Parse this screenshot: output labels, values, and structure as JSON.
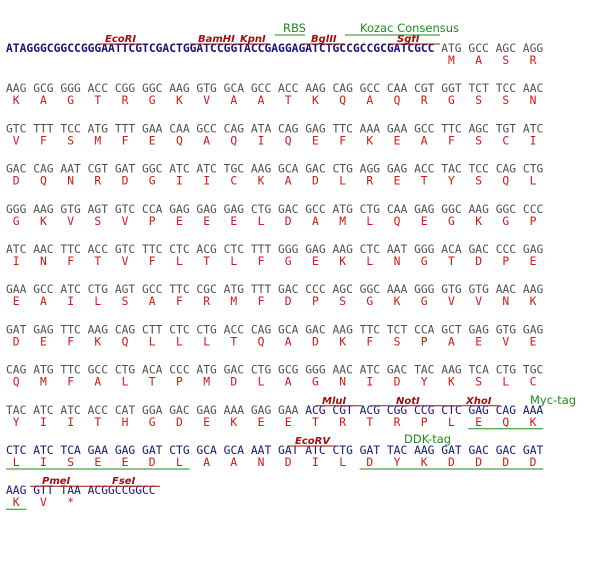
{
  "sequence": {
    "colors": {
      "vector": "#14147a",
      "orf": "#505050",
      "tag": "#14147a",
      "amino_acid": "#d01818",
      "site": "#a01010",
      "element": "#1f8a1f"
    },
    "lines": [
      {
        "segments": [
          {
            "text": "ATAGGGCGGCCGGGAATTCGTCGACTGGATCCGGTACCGAGGAGATCTGCCGCCGCGATCGCC",
            "kind": "vector",
            "bold": true
          },
          {
            "text": "ATG GCC AGC AGG",
            "kind": "orf"
          }
        ],
        "aa": [
          "M",
          "A",
          "S",
          "R"
        ]
      },
      {
        "segments": [
          {
            "text": "AAG GCG GGG ACC CGG GGC AAG GTG GCA GCC ACC AAG CAG GCC CAA CGT GGT TCT TCC AAC",
            "kind": "orf"
          }
        ],
        "aa": [
          "K",
          "A",
          "G",
          "T",
          "R",
          "G",
          "K",
          "V",
          "A",
          "A",
          "T",
          "K",
          "Q",
          "A",
          "Q",
          "R",
          "G",
          "S",
          "S",
          "N"
        ]
      },
      {
        "segments": [
          {
            "text": "GTC TTT TCC ATG TTT GAA CAA GCC CAG ATA CAG GAG TTC AAA GAA GCC TTC AGC TGT ATC",
            "kind": "orf"
          }
        ],
        "aa": [
          "V",
          "F",
          "S",
          "M",
          "F",
          "E",
          "Q",
          "A",
          "Q",
          "I",
          "Q",
          "E",
          "F",
          "K",
          "E",
          "A",
          "F",
          "S",
          "C",
          "I"
        ]
      },
      {
        "segments": [
          {
            "text": "GAC CAG AAT CGT GAT GGC ATC ATC TGC AAG GCA GAC CTG AGG GAG ACC TAC TCC CAG CTG",
            "kind": "orf"
          }
        ],
        "aa": [
          "D",
          "Q",
          "N",
          "R",
          "D",
          "G",
          "I",
          "I",
          "C",
          "K",
          "A",
          "D",
          "L",
          "R",
          "E",
          "T",
          "Y",
          "S",
          "Q",
          "L"
        ]
      },
      {
        "segments": [
          {
            "text": "GGG AAG GTG AGT GTC CCA GAG GAG GAG CTG GAC GCC ATG CTG CAA GAG GGC AAG GGC CCC",
            "kind": "orf"
          }
        ],
        "aa": [
          "G",
          "K",
          "V",
          "S",
          "V",
          "P",
          "E",
          "E",
          "E",
          "L",
          "D",
          "A",
          "M",
          "L",
          "Q",
          "E",
          "G",
          "K",
          "G",
          "P"
        ]
      },
      {
        "segments": [
          {
            "text": "ATC AAC TTC ACC GTC TTC CTC ACG CTC TTT GGG GAG AAG CTC AAT GGG ACA GAC CCC GAG",
            "kind": "orf"
          }
        ],
        "aa": [
          "I",
          "N",
          "F",
          "T",
          "V",
          "F",
          "L",
          "T",
          "L",
          "F",
          "G",
          "E",
          "K",
          "L",
          "N",
          "G",
          "T",
          "D",
          "P",
          "E"
        ]
      },
      {
        "segments": [
          {
            "text": "GAA GCC ATC CTG AGT GCC TTC CGC ATG TTT GAC CCC AGC GGC AAA GGG GTG GTG AAC AAG",
            "kind": "orf"
          }
        ],
        "aa": [
          "E",
          "A",
          "I",
          "L",
          "S",
          "A",
          "F",
          "R",
          "M",
          "F",
          "D",
          "P",
          "S",
          "G",
          "K",
          "G",
          "V",
          "V",
          "N",
          "K"
        ]
      },
      {
        "segments": [
          {
            "text": "GAT GAG TTC AAG CAG CTT CTC CTG ACC CAG GCA GAC AAG TTC TCT CCA GCT GAG GTG GAG",
            "kind": "orf"
          }
        ],
        "aa": [
          "D",
          "E",
          "F",
          "K",
          "Q",
          "L",
          "L",
          "L",
          "T",
          "Q",
          "A",
          "D",
          "K",
          "F",
          "S",
          "P",
          "A",
          "E",
          "V",
          "E"
        ]
      },
      {
        "segments": [
          {
            "text": "CAG ATG TTC GCC CTG ACA CCC ATG GAC CTG GCG GGG AAC ATC GAC TAC AAG TCA CTG TGC",
            "kind": "orf"
          }
        ],
        "aa": [
          "Q",
          "M",
          "F",
          "A",
          "L",
          "T",
          "P",
          "M",
          "D",
          "L",
          "A",
          "G",
          "N",
          "I",
          "D",
          "Y",
          "K",
          "S",
          "L",
          "C"
        ]
      },
      {
        "segments": [
          {
            "text": "TAC ATC ATC ACC CAT GGA GAC GAG AAA GAG GAA",
            "kind": "orf"
          },
          {
            "text": "ACG CGT ACG CGG CCG CTC GAG CAG AAA",
            "kind": "tag"
          }
        ],
        "aa": [
          "Y",
          "I",
          "I",
          "T",
          "H",
          "G",
          "D",
          "E",
          "K",
          "E",
          "E",
          "T",
          "R",
          "T",
          "R",
          "P",
          "L",
          "E",
          "Q",
          "K"
        ]
      },
      {
        "segments": [
          {
            "text": "CTC ATC TCA GAA GAG GAT CTG GCA GCA AAT GAT ATC CTG GAT TAC AAG GAT GAC GAC GAT",
            "kind": "tag"
          }
        ],
        "aa": [
          "L",
          "I",
          "S",
          "E",
          "E",
          "D",
          "L",
          "A",
          "A",
          "N",
          "D",
          "I",
          "L",
          "D",
          "Y",
          "K",
          "D",
          "D",
          "D",
          "D"
        ]
      },
      {
        "segments": [
          {
            "text": "AAG GTT TAA",
            "kind": "tag"
          },
          {
            "text": "ACGGCCGGCC",
            "kind": "vector"
          }
        ],
        "aa": [
          "K",
          "V",
          "*"
        ]
      }
    ],
    "sites": [
      "EcoRI",
      "BamHI",
      "KpnI",
      "BglII",
      "SgfI",
      "MluI",
      "NotI",
      "XhoI",
      "EcoRV",
      "PmeI",
      "FseI"
    ],
    "elements": [
      "RBS",
      "Kozac Consensus",
      "Myc-tag",
      "DDK-tag"
    ]
  }
}
